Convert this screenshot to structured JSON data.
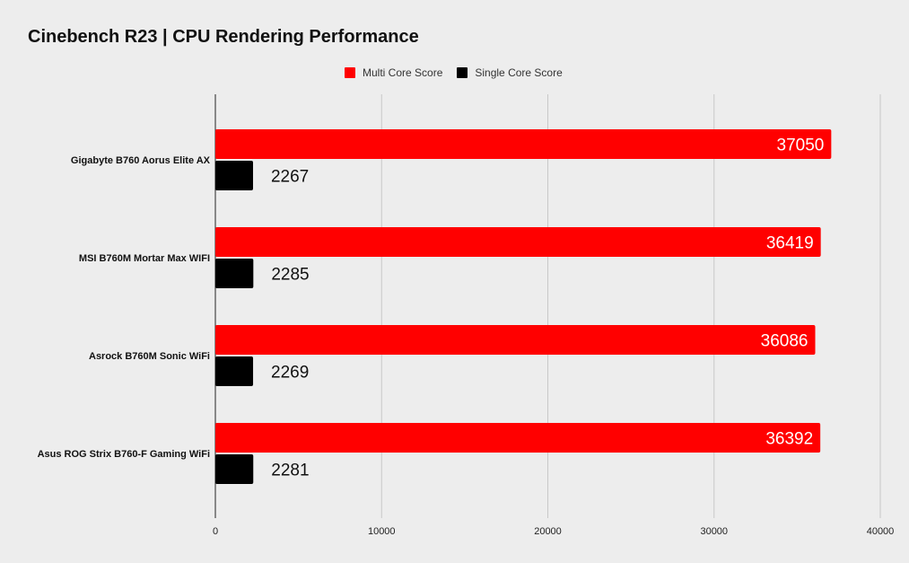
{
  "chart_data": {
    "type": "bar",
    "orientation": "horizontal",
    "title": "Cinebench R23 | CPU Rendering Performance",
    "categories": [
      "Gigabyte B760 Aorus Elite AX",
      "MSI B760M Mortar Max WIFI",
      "Asrock B760M Sonic WiFi",
      "Asus ROG Strix B760-F Gaming WiFi"
    ],
    "series": [
      {
        "name": "Multi Core Score",
        "color": "#ff0000",
        "label_color": "#ffffff",
        "values": [
          37050,
          36419,
          36086,
          36392
        ]
      },
      {
        "name": "Single Core Score",
        "color": "#000000",
        "label_color": "#111111",
        "values": [
          2267,
          2285,
          2269,
          2281
        ]
      }
    ],
    "xlim": [
      0,
      40000
    ],
    "xticks": [
      0,
      10000,
      20000,
      30000,
      40000
    ],
    "xtick_labels": [
      "0",
      "10000",
      "20000",
      "30000",
      "40000"
    ],
    "grid": true,
    "legend_position": "top-center",
    "background": "#ededed",
    "gridline_color": "#c8c8c8"
  }
}
